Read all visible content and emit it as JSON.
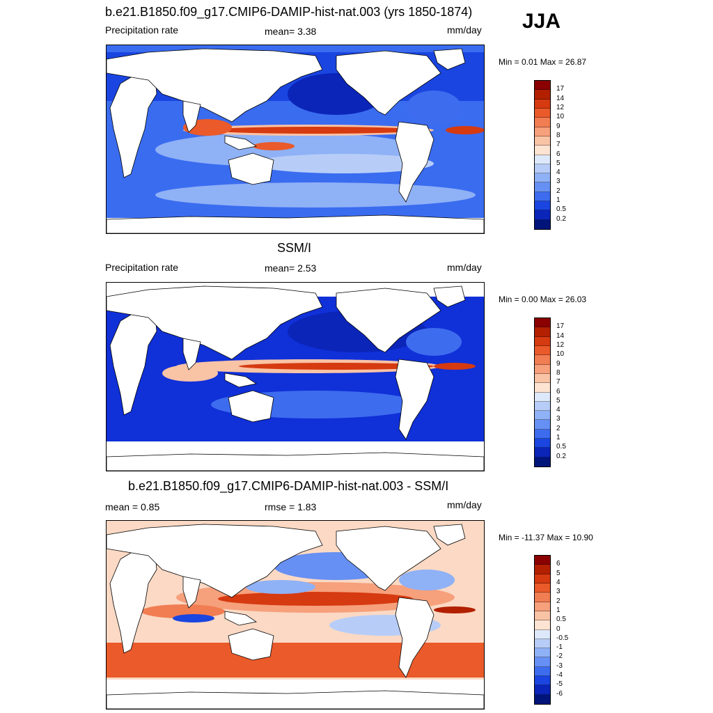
{
  "season": "JJA",
  "panels": [
    {
      "title": "b.e21.B1850.f09_g17.CMIP6-DAMIP-hist-nat.003 (yrs 1850-1874)",
      "left_label": "Precipitation rate",
      "center_label": "mean=   3.38",
      "units": "mm/day",
      "minmax": "Min =   0.01 Max =  26.87",
      "ocean_base": "#3a6cf0"
    },
    {
      "title": "SSM/I",
      "left_label": "Precipitation rate",
      "center_label": "mean=   2.53",
      "units": "mm/day",
      "minmax": "Min =   0.00 Max =  26.03",
      "ocean_base": "#1030d8"
    },
    {
      "title": "b.e21.B1850.f09_g17.CMIP6-DAMIP-hist-nat.003 - SSM/I",
      "left_label": "mean =   0.85",
      "center_label": "rmse =   1.83",
      "units": "mm/day",
      "minmax": "Min = -11.37 Max =  10.90",
      "ocean_base": "#fbd9c4"
    }
  ],
  "colorbar_precip": {
    "labels": [
      "17",
      "14",
      "12",
      "10",
      "9",
      "8",
      "7",
      "6",
      "5",
      "4",
      "3",
      "2",
      "1",
      "0.5",
      "0.2"
    ],
    "colors": [
      "#8b0000",
      "#b22000",
      "#d63a10",
      "#ea5a2a",
      "#f17d52",
      "#f6a07c",
      "#f9c3a6",
      "#fde3d2",
      "#dde8fb",
      "#b7cdf8",
      "#8fb1f6",
      "#6690f3",
      "#3d6cee",
      "#1a45e0",
      "#0a25b8",
      "#00147a"
    ]
  },
  "colorbar_diff": {
    "labels": [
      "6",
      "5",
      "4",
      "3",
      "2",
      "1",
      "0.5",
      "0",
      "-0.5",
      "-1",
      "-2",
      "-3",
      "-4",
      "-5",
      "-6"
    ],
    "colors": [
      "#8b0000",
      "#b22000",
      "#d63a10",
      "#ea5a2a",
      "#f17d52",
      "#f6a07c",
      "#f9c3a6",
      "#fde3d2",
      "#dde8fb",
      "#b7cdf8",
      "#8fb1f6",
      "#6690f3",
      "#3d6cee",
      "#1a45e0",
      "#0a25b8",
      "#00147a"
    ]
  }
}
